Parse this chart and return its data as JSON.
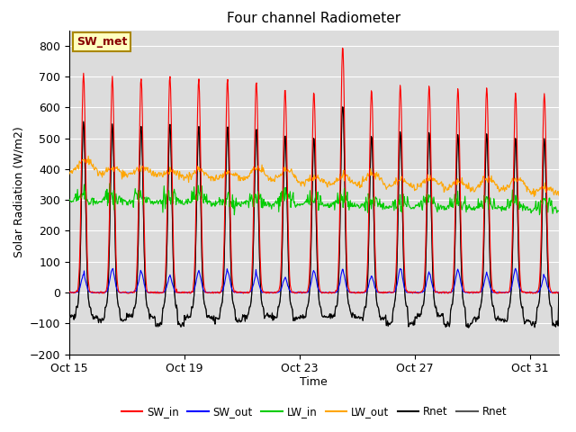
{
  "title": "Four channel Radiometer",
  "xlabel": "Time",
  "ylabel": "Solar Radiation (W/m2)",
  "ylim": [
    -200,
    850
  ],
  "yticks": [
    -200,
    -100,
    0,
    100,
    200,
    300,
    400,
    500,
    600,
    700,
    800
  ],
  "annotation_text": "SW_met",
  "annotation_box_facecolor": "#FFFFC0",
  "annotation_box_edgecolor": "#AA8800",
  "annotation_text_color": "#880000",
  "bg_color": "#DCDCDC",
  "grid_color": "#FFFFFF",
  "lines": {
    "SW_in": {
      "color": "#FF0000",
      "lw": 0.8
    },
    "SW_out": {
      "color": "#0000FF",
      "lw": 0.8
    },
    "LW_in": {
      "color": "#00CC00",
      "lw": 0.8
    },
    "LW_out": {
      "color": "#FFA500",
      "lw": 0.8
    },
    "Rnet1": {
      "color": "#000000",
      "lw": 0.8
    },
    "Rnet2": {
      "color": "#555555",
      "lw": 0.8
    }
  },
  "xtick_labels": [
    "Oct 15",
    "Oct 19",
    "Oct 23",
    "Oct 27",
    "Oct 31"
  ],
  "xtick_positions": [
    0,
    4,
    8,
    12,
    16
  ],
  "n_days": 17,
  "legend_labels": [
    "SW_in",
    "SW_out",
    "LW_in",
    "LW_out",
    "Rnet",
    "Rnet"
  ]
}
